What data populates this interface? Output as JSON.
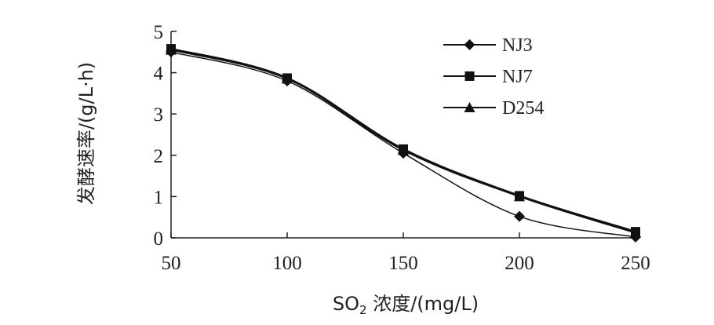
{
  "chart_data": {
    "type": "line",
    "title": "",
    "xlabel_main": "SO",
    "xlabel_sub": "2",
    "xlabel_rest": " 浓度/(mg/L)",
    "ylabel": "发酵速率/(g/L·h)",
    "x": [
      50,
      100,
      150,
      200,
      250
    ],
    "xlim": [
      50,
      250
    ],
    "ylim": [
      0,
      5
    ],
    "xticks": [
      "50",
      "100",
      "150",
      "200",
      "250"
    ],
    "yticks": [
      "0",
      "1",
      "2",
      "3",
      "4",
      "5"
    ],
    "grid": false,
    "legend_position": "top-right",
    "series": [
      {
        "name": "NJ3",
        "marker": "diamond",
        "values": [
          4.5,
          3.8,
          2.05,
          0.52,
          0.02
        ]
      },
      {
        "name": "NJ7",
        "marker": "square",
        "values": [
          4.58,
          3.87,
          2.15,
          1.02,
          0.15
        ]
      },
      {
        "name": "D254",
        "marker": "triangle",
        "values": [
          4.55,
          3.85,
          2.12,
          1.0,
          0.12
        ]
      }
    ]
  }
}
